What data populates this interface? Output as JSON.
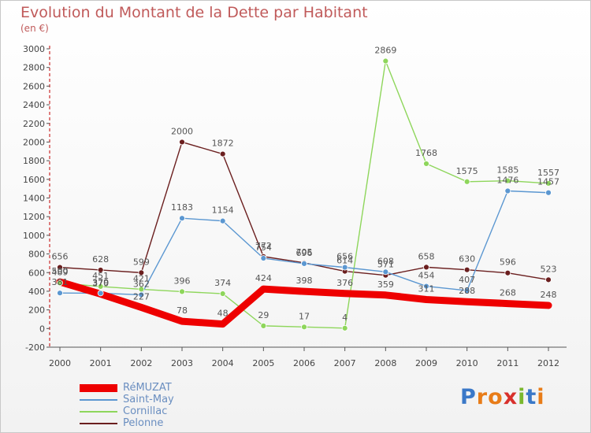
{
  "chart_data": {
    "type": "line",
    "title": "Evolution du Montant de la Dette par Habitant",
    "subtitle": "(en €)",
    "x": [
      "2000",
      "2001",
      "2002",
      "2003",
      "2004",
      "2005",
      "2006",
      "2007",
      "2008",
      "2009",
      "2010",
      "2011",
      "2012"
    ],
    "yticks": [
      -200,
      0,
      200,
      400,
      600,
      800,
      1000,
      1200,
      1400,
      1600,
      1800,
      2000,
      2200,
      2400,
      2600,
      2800,
      3000
    ],
    "ylim": [
      -200,
      3000
    ],
    "grid": false,
    "legend_position": "bottom-left",
    "series": [
      {
        "name": "Pelonne",
        "color": "#6b1f1f",
        "values": [
          656,
          628,
          599,
          2000,
          1872,
          772,
          705,
          614,
          571,
          658,
          630,
          596,
          523
        ]
      },
      {
        "name": "Cornillac",
        "color": "#8ed65b",
        "values": [
          489,
          451,
          421,
          396,
          374,
          29,
          17,
          4,
          2869,
          1768,
          1575,
          1585,
          1557
        ]
      },
      {
        "name": "Saint-May",
        "color": "#5b97d1",
        "values": [
          381,
          379,
          362,
          1183,
          1154,
          754,
          696,
          656,
          608,
          454,
          407,
          1476,
          1457
        ]
      },
      {
        "name": "RéMUZAT",
        "color": "#ee0000",
        "values": [
          500,
          370,
          227,
          78,
          48,
          424,
          398,
          376,
          359,
          311,
          288,
          268,
          248
        ]
      }
    ]
  },
  "logo": {
    "letters": [
      "P",
      "r",
      "o",
      "x",
      "i",
      "t",
      "i"
    ],
    "colors": [
      "#3a78c8",
      "#e87c18",
      "#e87c18",
      "#d8302c",
      "#7ab82e",
      "#3a78c8",
      "#e87c18"
    ]
  }
}
